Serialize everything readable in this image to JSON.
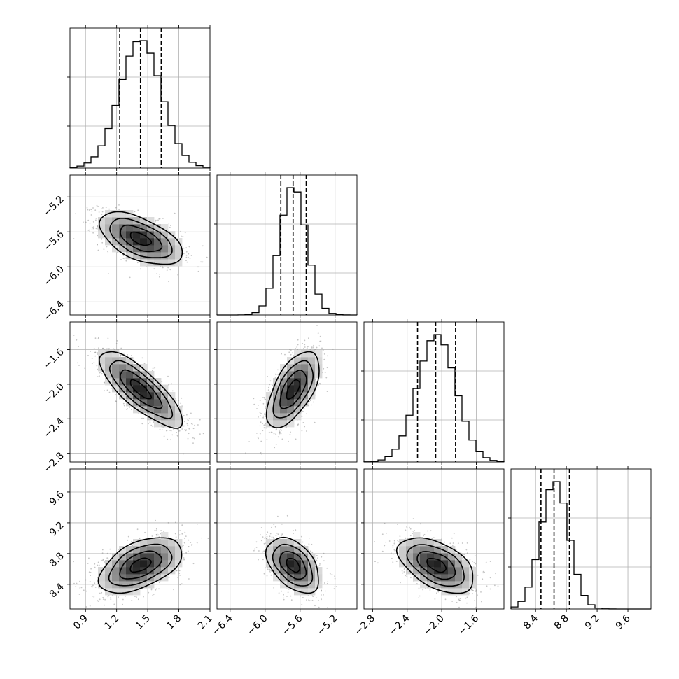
{
  "chart_data": {
    "type": "corner",
    "parameters": [
      {
        "label": "",
        "range": [
          0.75,
          2.1
        ],
        "ticks": [
          0.9,
          1.2,
          1.5,
          1.8,
          2.1
        ],
        "tick_labels": [
          "0.9",
          "1.2",
          "1.5",
          "1.8",
          "2.1"
        ],
        "q16": 1.23,
        "q50": 1.43,
        "q84": 1.63,
        "mean": 1.43,
        "sd": 0.2
      },
      {
        "label": "",
        "range": [
          -6.55,
          -4.95
        ],
        "ticks": [
          -6.4,
          -6.0,
          -5.6,
          -5.2
        ],
        "tick_labels": [
          "−6.4",
          "−6.0",
          "−5.6",
          "−5.2"
        ],
        "q16": -5.82,
        "q50": -5.68,
        "q84": -5.53,
        "mean": -5.68,
        "sd": 0.15
      },
      {
        "label": "",
        "range": [
          -2.9,
          -1.28
        ],
        "ticks": [
          -2.8,
          -2.4,
          -2.0,
          -1.6
        ],
        "tick_labels": [
          "−2.8",
          "−2.4",
          "−2.0",
          "−1.6"
        ],
        "q16": -2.28,
        "q50": -2.07,
        "q84": -1.84,
        "mean": -2.06,
        "sd": 0.22
      },
      {
        "label": "",
        "range": [
          8.08,
          9.9
        ],
        "ticks": [
          8.4,
          8.8,
          9.2,
          9.6
        ],
        "tick_labels": [
          "8.4",
          "8.8",
          "9.2",
          "9.6"
        ],
        "q16": 8.47,
        "q50": 8.64,
        "q84": 8.84,
        "mean": 8.65,
        "sd": 0.18
      }
    ],
    "correlations": [
      {
        "i": 1,
        "j": 0,
        "r": -0.55
      },
      {
        "i": 2,
        "j": 0,
        "r": -0.8
      },
      {
        "i": 2,
        "j": 1,
        "r": 0.6
      },
      {
        "i": 3,
        "j": 0,
        "r": 0.5
      },
      {
        "i": 3,
        "j": 1,
        "r": -0.45
      },
      {
        "i": 3,
        "j": 2,
        "r": -0.5
      }
    ],
    "quantiles": [
      0.16,
      0.5,
      0.84
    ],
    "grid": true,
    "colors": {
      "line": "#000000",
      "grid": "#b0b0b0",
      "points": "#7f7f7f"
    }
  }
}
